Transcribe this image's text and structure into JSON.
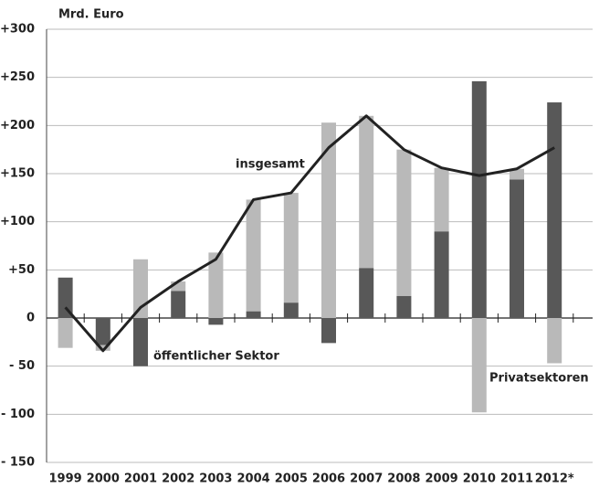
{
  "chart_data": {
    "type": "bar",
    "unit": "Mrd. Euro",
    "categories": [
      "1999",
      "2000",
      "2001",
      "2002",
      "2003",
      "2004",
      "2005",
      "2006",
      "2007",
      "2008",
      "2009",
      "2010",
      "2011",
      "2012*"
    ],
    "series": [
      {
        "name": "öffentlicher Sektor",
        "color": "#585858",
        "type": "bar",
        "values": [
          42,
          -28,
          -50,
          28,
          -7,
          7,
          16,
          -26,
          52,
          23,
          90,
          246,
          144,
          224
        ]
      },
      {
        "name": "Privatsektoren",
        "color": "#b9b9b9",
        "type": "bar",
        "values": [
          -31,
          -6,
          61,
          10,
          68,
          116,
          114,
          203,
          158,
          152,
          66,
          -98,
          11,
          -47
        ]
      },
      {
        "name": "insgesamt",
        "color": "#222222",
        "type": "line",
        "values": [
          11,
          -34,
          11,
          38,
          61,
          123,
          130,
          177,
          210,
          175,
          156,
          148,
          155,
          177
        ]
      }
    ],
    "ylim": [
      -150,
      300
    ],
    "yticks": [
      {
        "value": -150,
        "label": "- 150"
      },
      {
        "value": -100,
        "label": "- 100"
      },
      {
        "value": -50,
        "label": "- 50"
      },
      0,
      {
        "value": 50,
        "label": "+50"
      },
      {
        "value": 100,
        "label": "+100"
      },
      {
        "value": 150,
        "label": "+150"
      },
      {
        "value": 200,
        "label": "+200"
      },
      {
        "value": 250,
        "label": "+250"
      },
      {
        "value": 300,
        "label": "+300"
      }
    ],
    "grid": true
  }
}
